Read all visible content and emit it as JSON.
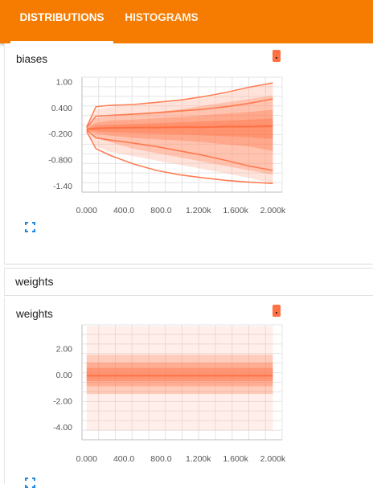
{
  "tabs": [
    {
      "label": "DISTRIBUTIONS",
      "active": true
    },
    {
      "label": "HISTOGRAMS",
      "active": false
    }
  ],
  "colors": {
    "accent": "#f57c00",
    "series": "#ff7043",
    "series_light": "#ffab91"
  },
  "icons": {
    "run_color": "color-swatch-icon",
    "expand": "fullscreen-icon"
  },
  "section_title": "weights",
  "chart_data": [
    {
      "type": "area",
      "title": "biases",
      "ylim": [
        -1.55,
        1.1
      ],
      "xlim": [
        -50,
        2100
      ],
      "yticks": [
        1.0,
        0.4,
        -0.2,
        -0.8,
        -1.4
      ],
      "ytick_labels": [
        "1.00",
        "0.400",
        "-0.200",
        "-0.800",
        "-1.40"
      ],
      "xticks": [
        0,
        400,
        800,
        1200,
        1600,
        2000
      ],
      "xtick_labels": [
        "0.000",
        "400.0",
        "800.0",
        "1.200k",
        "1.600k",
        "2.000k"
      ],
      "x": [
        0,
        100,
        250,
        500,
        750,
        1000,
        1250,
        1500,
        1750,
        2000
      ],
      "bands": [
        {
          "upper": [
            -0.05,
            0.35,
            0.42,
            0.45,
            0.5,
            0.55,
            0.62,
            0.72,
            0.85,
            0.97
          ],
          "lower": [
            -0.15,
            -0.5,
            -0.62,
            -0.72,
            -0.82,
            -0.92,
            -1.02,
            -1.12,
            -1.22,
            -1.35
          ]
        },
        {
          "upper": [
            -0.06,
            0.15,
            0.2,
            0.25,
            0.3,
            0.36,
            0.44,
            0.52,
            0.6,
            0.68
          ],
          "lower": [
            -0.14,
            -0.3,
            -0.4,
            -0.55,
            -0.65,
            -0.75,
            -0.85,
            -0.95,
            -1.05,
            -1.15
          ]
        },
        {
          "upper": [
            -0.07,
            0.05,
            0.1,
            0.12,
            0.15,
            0.18,
            0.22,
            0.26,
            0.3,
            0.35
          ],
          "lower": [
            -0.13,
            -0.2,
            -0.25,
            -0.3,
            -0.33,
            -0.36,
            -0.4,
            -0.45,
            -0.5,
            -0.6
          ]
        },
        {
          "upper": [
            -0.08,
            -0.02,
            0.0,
            0.02,
            0.04,
            0.06,
            0.08,
            0.1,
            0.12,
            0.15
          ],
          "lower": [
            -0.12,
            -0.15,
            -0.17,
            -0.19,
            -0.2,
            -0.22,
            -0.24,
            -0.26,
            -0.28,
            -0.32
          ]
        }
      ],
      "median": [
        -0.1,
        -0.08,
        -0.07,
        -0.06,
        -0.06,
        -0.05,
        -0.05,
        -0.04,
        -0.04,
        -0.03
      ],
      "extra_lines": [
        [
          -0.05,
          0.42,
          0.45,
          0.47,
          0.52,
          0.57,
          0.65,
          0.75,
          0.87,
          0.97
        ],
        [
          -0.15,
          -0.55,
          -0.7,
          -0.9,
          -1.05,
          -1.15,
          -1.22,
          -1.28,
          -1.32,
          -1.35
        ],
        [
          -0.12,
          -0.3,
          -0.35,
          -0.42,
          -0.5,
          -0.6,
          -0.7,
          -0.82,
          -0.95,
          -1.05
        ],
        [
          -0.06,
          0.2,
          0.22,
          0.25,
          0.28,
          0.32,
          0.36,
          0.42,
          0.5,
          0.6
        ]
      ]
    },
    {
      "type": "area",
      "title": "weights",
      "ylim": [
        -5.0,
        3.8
      ],
      "xlim": [
        -50,
        2100
      ],
      "yticks": [
        2.0,
        0.0,
        -2.0,
        -4.0
      ],
      "ytick_labels": [
        "2.00",
        "0.00",
        "-2.00",
        "-4.00"
      ],
      "xticks": [
        0,
        400,
        800,
        1200,
        1600,
        2000
      ],
      "xtick_labels": [
        "0.000",
        "400.0",
        "800.0",
        "1.200k",
        "1.600k",
        "2.000k"
      ],
      "x": [
        0,
        2000
      ],
      "bands": [
        {
          "upper": [
            3.7,
            3.7
          ],
          "lower": [
            -4.3,
            -4.3
          ]
        },
        {
          "upper": [
            1.5,
            1.5
          ],
          "lower": [
            -1.5,
            -1.5
          ]
        },
        {
          "upper": [
            0.9,
            0.9
          ],
          "lower": [
            -0.9,
            -0.9
          ]
        },
        {
          "upper": [
            0.5,
            0.5
          ],
          "lower": [
            -0.5,
            -0.5
          ]
        }
      ],
      "median": [
        -0.1,
        -0.1
      ],
      "extra_lines": []
    }
  ]
}
